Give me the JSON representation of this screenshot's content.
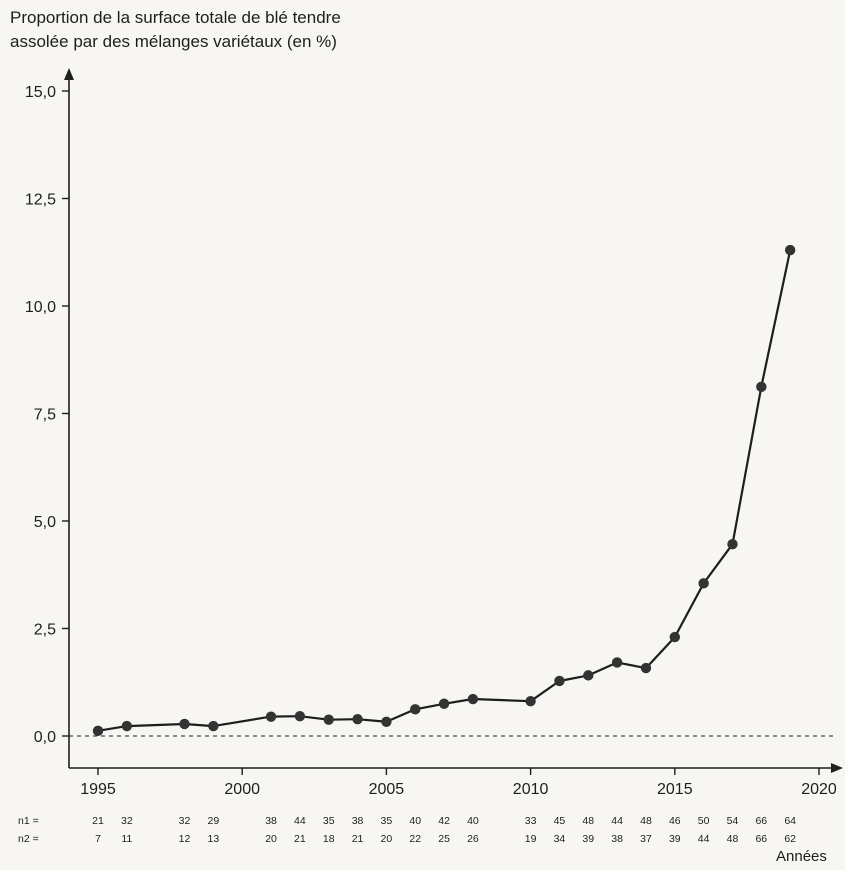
{
  "chart_data": {
    "type": "line",
    "ylabel_line1": "Proportion de la surface totale de blé tendre",
    "ylabel_line2": "assolée par des mélanges variétaux (en %)",
    "xlabel": "Années",
    "ylim": [
      0,
      15
    ],
    "xlim": [
      1995,
      2020
    ],
    "y_ticks": [
      "0,0",
      "2,5",
      "5,0",
      "7,5",
      "10,0",
      "12,5",
      "15,0"
    ],
    "x_ticks": [
      "1995",
      "2000",
      "2005",
      "2010",
      "2015",
      "2020"
    ],
    "reference_line": {
      "y": 0,
      "style": "dashed"
    },
    "grid": false,
    "series": [
      {
        "x": [
          1995,
          1996,
          1998,
          1999,
          2001,
          2002,
          2003,
          2004,
          2005,
          2006,
          2007,
          2008,
          2010,
          2011,
          2012,
          2013,
          2014,
          2015,
          2016,
          2017,
          2018,
          2019
        ],
        "y": [
          0.12,
          0.23,
          0.28,
          0.23,
          0.45,
          0.46,
          0.38,
          0.39,
          0.33,
          0.62,
          0.75,
          0.86,
          0.81,
          1.28,
          1.41,
          1.71,
          1.58,
          2.3,
          3.55,
          4.46,
          8.12,
          11.3
        ]
      }
    ],
    "sample_counts": {
      "n1_label": "n1 =",
      "n2_label": "n2 =",
      "years": [
        1995,
        1996,
        1998,
        1999,
        2001,
        2002,
        2003,
        2004,
        2005,
        2006,
        2007,
        2008,
        2010,
        2011,
        2012,
        2013,
        2014,
        2015,
        2016,
        2017,
        2018,
        2019
      ],
      "n1": [
        "21",
        "32",
        "32",
        "29",
        "38",
        "44",
        "35",
        "38",
        "35",
        "40",
        "42",
        "40",
        "33",
        "45",
        "48",
        "44",
        "48",
        "46",
        "50",
        "54",
        "66",
        "64"
      ],
      "n2": [
        "7",
        "11",
        "12",
        "13",
        "20",
        "21",
        "18",
        "21",
        "20",
        "22",
        "25",
        "26",
        "19",
        "34",
        "39",
        "38",
        "37",
        "39",
        "44",
        "48",
        "66",
        "62"
      ]
    }
  }
}
